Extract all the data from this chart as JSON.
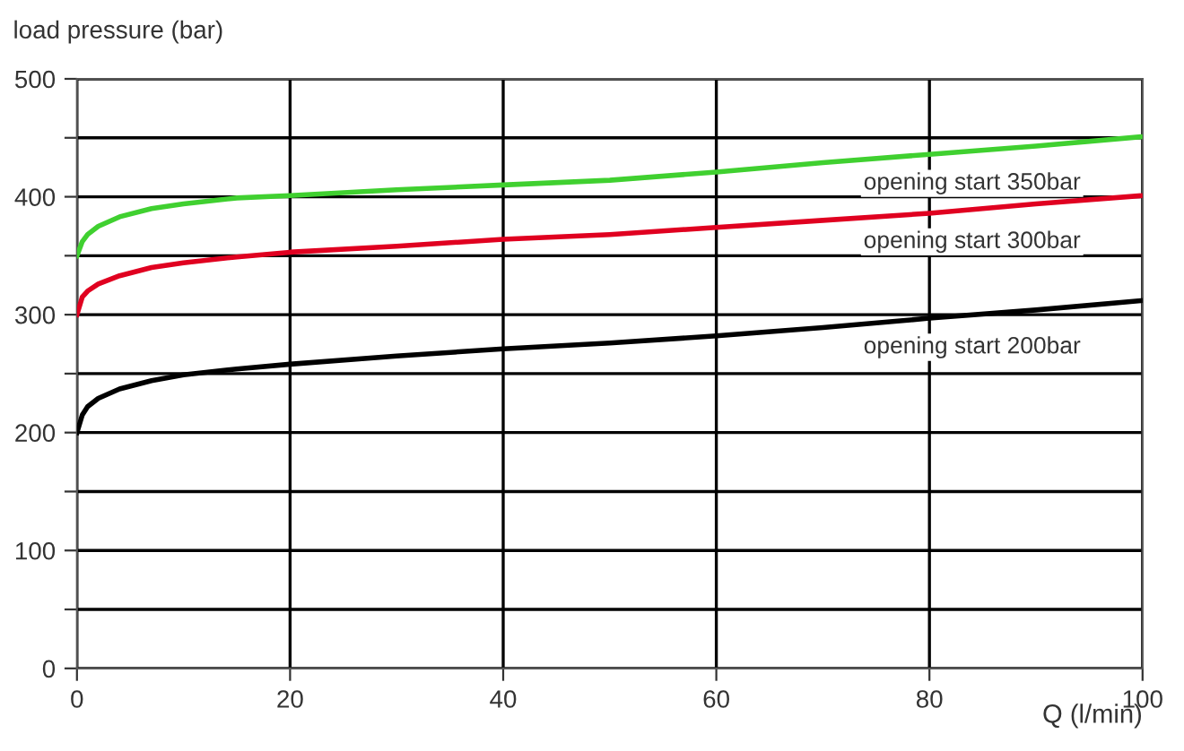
{
  "chart_data": {
    "type": "line",
    "ylabel": "load pressure (bar)",
    "xlabel": "Q (l/min)",
    "xlim": [
      0,
      100
    ],
    "xticks": [
      0,
      20,
      40,
      60,
      80,
      100
    ],
    "ylim": [
      0,
      500
    ],
    "yticks": [
      0,
      {
        "value": 50,
        "label": null
      },
      100,
      {
        "value": 150,
        "label": null
      },
      200,
      {
        "value": 250,
        "label": null
      },
      300,
      {
        "value": 350,
        "label": null
      },
      400,
      {
        "value": 450,
        "label": null
      },
      500
    ],
    "grid": true,
    "marker": "none",
    "line_style": "solid",
    "x": [
      0,
      0.5,
      1,
      2,
      4,
      7,
      10,
      15,
      20,
      30,
      40,
      50,
      60,
      70,
      80,
      90,
      100
    ],
    "series": [
      {
        "name": "opening start 200bar",
        "color": "#000000",
        "values": [
          200,
          215,
          222,
          229,
          237,
          244,
          249,
          254,
          258,
          265,
          271,
          276,
          282,
          289,
          297,
          304,
          312
        ]
      },
      {
        "name": "opening start 300bar",
        "color": "#e00020",
        "values": [
          300,
          315,
          320,
          326,
          333,
          340,
          344,
          349,
          353,
          358,
          364,
          368,
          374,
          380,
          386,
          394,
          401
        ]
      },
      {
        "name": "opening start 350bar",
        "color": "#40d030",
        "values": [
          350,
          362,
          368,
          375,
          383,
          390,
          394,
          399,
          401,
          406,
          410,
          414,
          421,
          429,
          436,
          443,
          451
        ]
      }
    ]
  }
}
